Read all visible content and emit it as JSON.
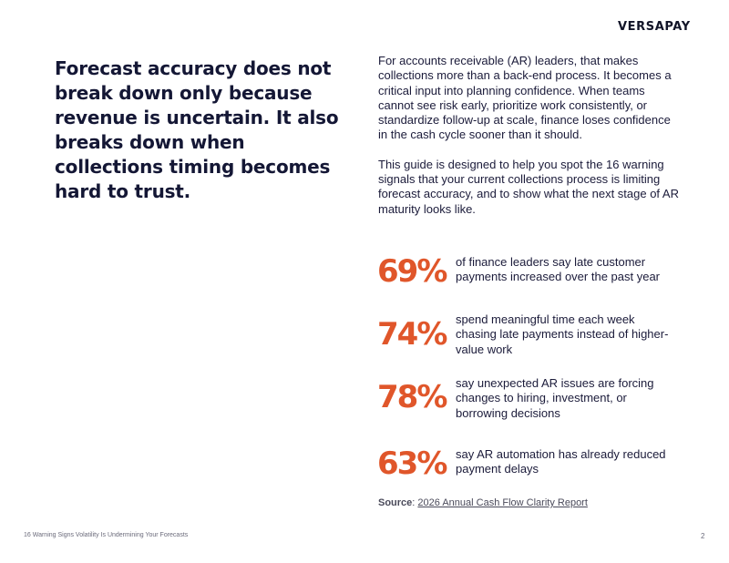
{
  "header": {
    "logo_text": "VERSAPAY"
  },
  "headline": "Forecast accuracy does not break down only because revenue is uncertain. It also breaks down when collections timing becomes hard to trust.",
  "intro": {
    "paragraph_1": "For accounts receivable (AR) leaders, that makes collections more than a back-end process. It becomes a critical input into planning confidence. When teams cannot see risk early, prioritize work consistently, or standardize follow-up at scale, finance loses confidence in the cash cycle sooner than it should.",
    "paragraph_2": "This guide is designed to help you spot the 16 warning signals that your current collections process is limiting forecast accuracy, and to show what the next stage of AR maturity looks like."
  },
  "stats": [
    {
      "value": "69%",
      "text": "of finance leaders say late customer payments increased over the past year"
    },
    {
      "value": "74%",
      "text": "spend meaningful time each week chasing late payments instead of higher-value work"
    },
    {
      "value": "78%",
      "text": "say unexpected AR issues are forcing changes to hiring, investment, or borrowing decisions"
    },
    {
      "value": "63%",
      "text": "say AR automation has already reduced payment delays"
    }
  ],
  "source": {
    "label": "Source",
    "separator": ": ",
    "link_text": "2026 Annual Cash Flow Clarity Report"
  },
  "footer": {
    "text": "16 Warning Signs Volatility Is Undermining Your Forecasts",
    "page_number": "2"
  },
  "colors": {
    "accent": "#e0562a",
    "text": "#1b1b3a",
    "headline": "#141735"
  }
}
